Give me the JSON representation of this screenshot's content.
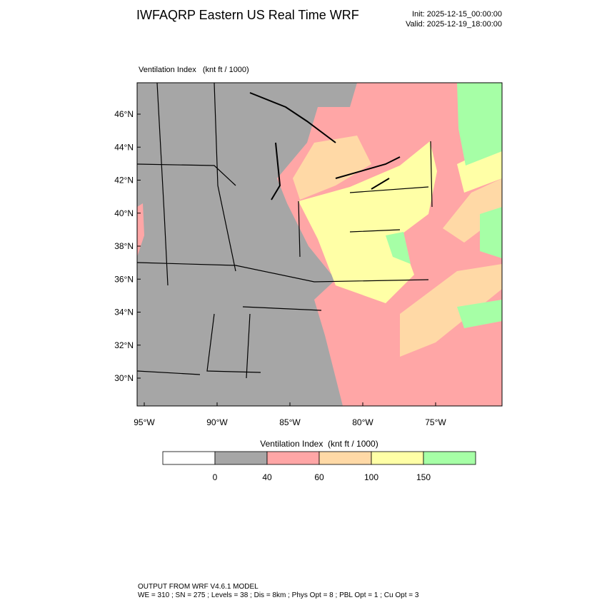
{
  "header": {
    "title": "IWFAQRP Eastern US Real Time WRF",
    "init": "Init: 2025-12-15_00:00:00",
    "valid": "Valid: 2025-12-19_18:00:00"
  },
  "map": {
    "label": "Ventilation Index   (knt ft / 1000)",
    "lat_labels": [
      "46°N",
      "44°N",
      "42°N",
      "40°N",
      "38°N",
      "36°N",
      "34°N",
      "32°N",
      "30°N"
    ],
    "lon_labels": [
      "95°W",
      "90°W",
      "85°W",
      "80°W",
      "75°W"
    ]
  },
  "legend": {
    "title": "Ventilation Index  (knt ft / 1000)",
    "colors": [
      "#ffffff",
      "#a6a6a6",
      "#ffa6a6",
      "#ffd9a6",
      "#ffffa6",
      "#a6ffa6"
    ],
    "ticks": [
      0,
      40,
      60,
      100,
      150
    ]
  },
  "footer": {
    "line1": "OUTPUT FROM WRF V4.6.1 MODEL",
    "line2": "WE = 310 ; SN = 275 ; Levels = 38 ; Dis = 8km ; Phys Opt = 8 ; PBL Opt = 1 ; Cu Opt = 3"
  }
}
